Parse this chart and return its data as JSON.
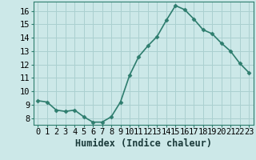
{
  "x": [
    0,
    1,
    2,
    3,
    4,
    5,
    6,
    7,
    8,
    9,
    10,
    11,
    12,
    13,
    14,
    15,
    16,
    17,
    18,
    19,
    20,
    21,
    22,
    23
  ],
  "y": [
    9.3,
    9.2,
    8.6,
    8.5,
    8.6,
    8.1,
    7.7,
    7.7,
    8.1,
    9.2,
    11.2,
    12.6,
    13.4,
    14.1,
    15.3,
    16.4,
    16.1,
    15.4,
    14.6,
    14.3,
    13.6,
    13.0,
    12.1,
    11.4
  ],
  "line_color": "#2e7d6e",
  "marker": "D",
  "marker_size": 2.5,
  "bg_color": "#cce8e8",
  "grid_color": "#aad0d0",
  "xlabel": "Humidex (Indice chaleur)",
  "ylabel": "",
  "ylim": [
    7.5,
    16.7
  ],
  "xlim": [
    -0.5,
    23.5
  ],
  "yticks": [
    8,
    9,
    10,
    11,
    12,
    13,
    14,
    15,
    16
  ],
  "xticks": [
    0,
    1,
    2,
    3,
    4,
    5,
    6,
    7,
    8,
    9,
    10,
    11,
    12,
    13,
    14,
    15,
    16,
    17,
    18,
    19,
    20,
    21,
    22,
    23
  ],
  "xtick_labels": [
    "0",
    "1",
    "2",
    "3",
    "4",
    "5",
    "6",
    "7",
    "8",
    "9",
    "10",
    "11",
    "12",
    "13",
    "14",
    "15",
    "16",
    "17",
    "18",
    "19",
    "20",
    "21",
    "22",
    "23"
  ],
  "title": "",
  "linewidth": 1.2,
  "tick_fontsize": 7.5,
  "xlabel_fontsize": 8.5
}
